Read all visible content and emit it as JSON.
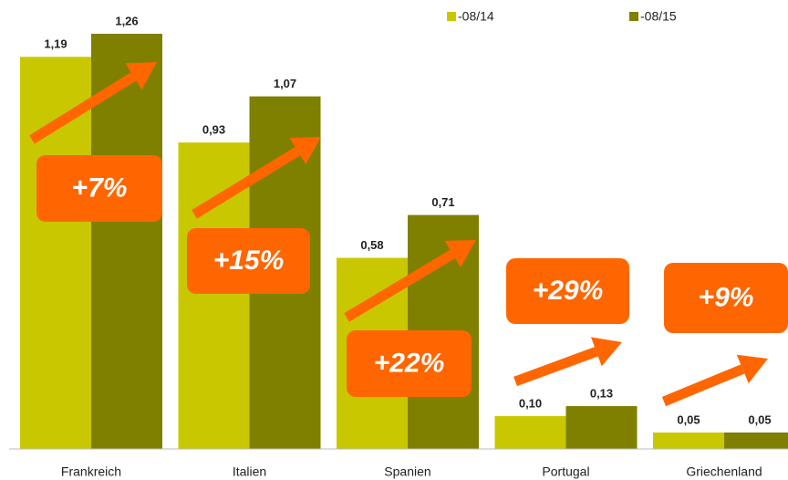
{
  "chart_data": {
    "type": "bar",
    "categories": [
      "Frankreich",
      "Italien",
      "Spanien",
      "Portugal",
      "Griechenland"
    ],
    "series": [
      {
        "name": "-08/14",
        "color": "#c9c800",
        "values": [
          1.19,
          0.93,
          0.58,
          0.1,
          0.05
        ],
        "value_labels": [
          "1,19",
          "0,93",
          "0,58",
          "0,10",
          "0,05"
        ]
      },
      {
        "name": "-08/15",
        "color": "#7f7f00",
        "values": [
          1.26,
          1.07,
          0.71,
          0.13,
          0.05
        ],
        "value_labels": [
          "1,26",
          "1,07",
          "0,71",
          "0,13",
          "0,05"
        ]
      }
    ],
    "annotations": [
      "+7%",
      "+15%",
      "+22%",
      "+29%",
      "+9%"
    ],
    "annotation_color": "#ff6600"
  }
}
